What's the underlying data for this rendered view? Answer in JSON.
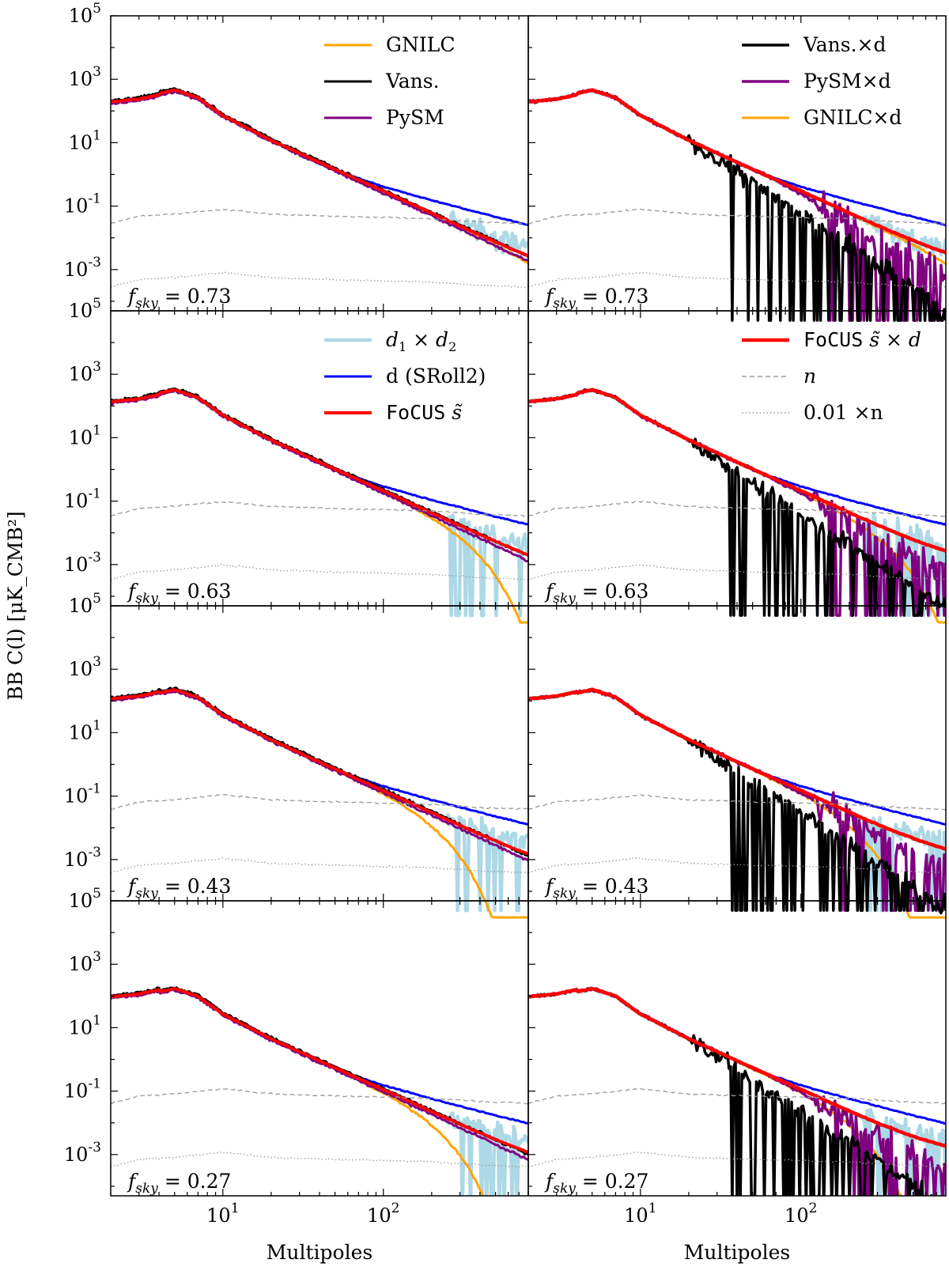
{
  "figure": {
    "ylabel": "BB C(l) [μK_CMB²]",
    "xlabel": "Multipoles",
    "yticks": [
      {
        "label": "10^5",
        "value": 100000
      },
      {
        "label": "10^3",
        "value": 1000
      },
      {
        "label": "10^1",
        "value": 10
      },
      {
        "label": "10^-1",
        "value": 0.1
      },
      {
        "label": "10^-3",
        "value": 0.001
      }
    ],
    "xticks": [
      {
        "label": "10^1",
        "value": 10
      },
      {
        "label": "10^2",
        "value": 100
      }
    ],
    "fsky_values": [
      "0.73",
      "0.63",
      "0.43",
      "0.27"
    ],
    "legends": {
      "left_top": [
        {
          "label": "GNILC",
          "series": "gnilc"
        },
        {
          "label": "Vans.",
          "series": "vans"
        },
        {
          "label": "PySM",
          "series": "pysm"
        }
      ],
      "right_top": [
        {
          "label": "Vans.×d",
          "series": "vans_x_d"
        },
        {
          "label": "PySM×d",
          "series": "pysm_x_d"
        },
        {
          "label": "GNILC×d",
          "series": "gnilc_x_d"
        }
      ],
      "left_second": [
        {
          "label": "d1 × d2",
          "series": "d1xd2"
        },
        {
          "label": "d (SRoll2)",
          "series": "d"
        },
        {
          "label": "FoCUS s̃",
          "series": "focus_s"
        }
      ],
      "right_second": [
        {
          "label": "FoCUS s̃ × d",
          "series": "focus_s_x_d"
        },
        {
          "label": "n",
          "series": "n"
        },
        {
          "label": "0.01 ×n",
          "series": "n001"
        }
      ]
    }
  },
  "chart_data": {
    "type": "line",
    "layout": "4 rows x 2 columns of log-log panels, shared axes",
    "xscale": "log",
    "yscale": "log",
    "xlim": [
      2,
      800
    ],
    "ylim": [
      5e-05,
      100000
    ],
    "grid": false,
    "colors": {
      "gnilc": "#ffa500",
      "vans": "#000000",
      "pysm": "#800080",
      "d1xd2": "#add8e6",
      "d": "#0000ff",
      "focus": "#ff0000",
      "noise": "#999999"
    },
    "panels": [
      {
        "row": 0,
        "column": "left",
        "fsky": 0.73,
        "series": [
          "d1xd2",
          "d",
          "gnilc",
          "pysm",
          "vans",
          "focus_s",
          "n",
          "n001"
        ],
        "level": 1.2,
        "bump": 1.0
      },
      {
        "row": 0,
        "column": "right",
        "fsky": 0.73,
        "series": [
          "d1xd2",
          "d",
          "gnilc_x_d",
          "pysm_x_d",
          "vans_x_d",
          "focus_s_x_d",
          "n",
          "n001"
        ],
        "level": 1.2,
        "bump": 1.0
      },
      {
        "row": 1,
        "column": "left",
        "fsky": 0.63,
        "series": [
          "d1xd2",
          "d",
          "gnilc",
          "pysm",
          "vans",
          "focus_s",
          "n",
          "n001"
        ],
        "level": 0.85,
        "bump": 1.0
      },
      {
        "row": 1,
        "column": "right",
        "fsky": 0.63,
        "series": [
          "d1xd2",
          "d",
          "gnilc_x_d",
          "pysm_x_d",
          "vans_x_d",
          "focus_s_x_d",
          "n",
          "n001"
        ],
        "level": 0.85,
        "bump": 1.0
      },
      {
        "row": 2,
        "column": "left",
        "fsky": 0.43,
        "series": [
          "d1xd2",
          "d",
          "gnilc",
          "pysm",
          "vans",
          "focus_s",
          "n",
          "n001"
        ],
        "level": 0.6,
        "bump": 1.2
      },
      {
        "row": 2,
        "column": "right",
        "fsky": 0.43,
        "series": [
          "d1xd2",
          "d",
          "gnilc_x_d",
          "pysm_x_d",
          "vans_x_d",
          "focus_s_x_d",
          "n",
          "n001"
        ],
        "level": 0.6,
        "bump": 1.2
      },
      {
        "row": 3,
        "column": "left",
        "fsky": 0.27,
        "series": [
          "d1xd2",
          "d",
          "gnilc",
          "pysm",
          "vans",
          "focus_s",
          "n",
          "n001"
        ],
        "level": 0.45,
        "bump": 1.3
      },
      {
        "row": 3,
        "column": "right",
        "fsky": 0.27,
        "series": [
          "d1xd2",
          "d",
          "gnilc_x_d",
          "pysm_x_d",
          "vans_x_d",
          "focus_s_x_d",
          "n",
          "n001"
        ],
        "level": 0.45,
        "bump": 1.3
      }
    ],
    "reference_spectra": {
      "signal": {
        "x": [
          2,
          3,
          5,
          7,
          10,
          20,
          50,
          100,
          200,
          400,
          800
        ],
        "y": [
          180,
          220,
          380,
          220,
          60,
          10,
          1.2,
          0.25,
          0.05,
          0.01,
          0.002
        ]
      },
      "d_sroll2": {
        "x": [
          2,
          10,
          50,
          100,
          200,
          400,
          800
        ],
        "y": [
          200,
          60,
          1.3,
          0.4,
          0.15,
          0.06,
          0.025
        ]
      },
      "n": {
        "x": [
          2,
          3,
          5,
          10,
          20,
          50,
          100,
          200,
          400,
          800
        ],
        "y": [
          0.035,
          0.06,
          0.07,
          0.1,
          0.07,
          0.06,
          0.055,
          0.05,
          0.04,
          0.035
        ]
      },
      "n_x_0.01": {
        "x": [
          2,
          3,
          5,
          10,
          20,
          50,
          100,
          200,
          400,
          800
        ],
        "y": [
          0.00035,
          0.0006,
          0.0007,
          0.001,
          0.0007,
          0.0006,
          0.00055,
          0.0005,
          0.0004,
          0.00035
        ]
      },
      "gnilc_cutoff_l": 200,
      "cross_d_breakdown_l": 20
    }
  }
}
